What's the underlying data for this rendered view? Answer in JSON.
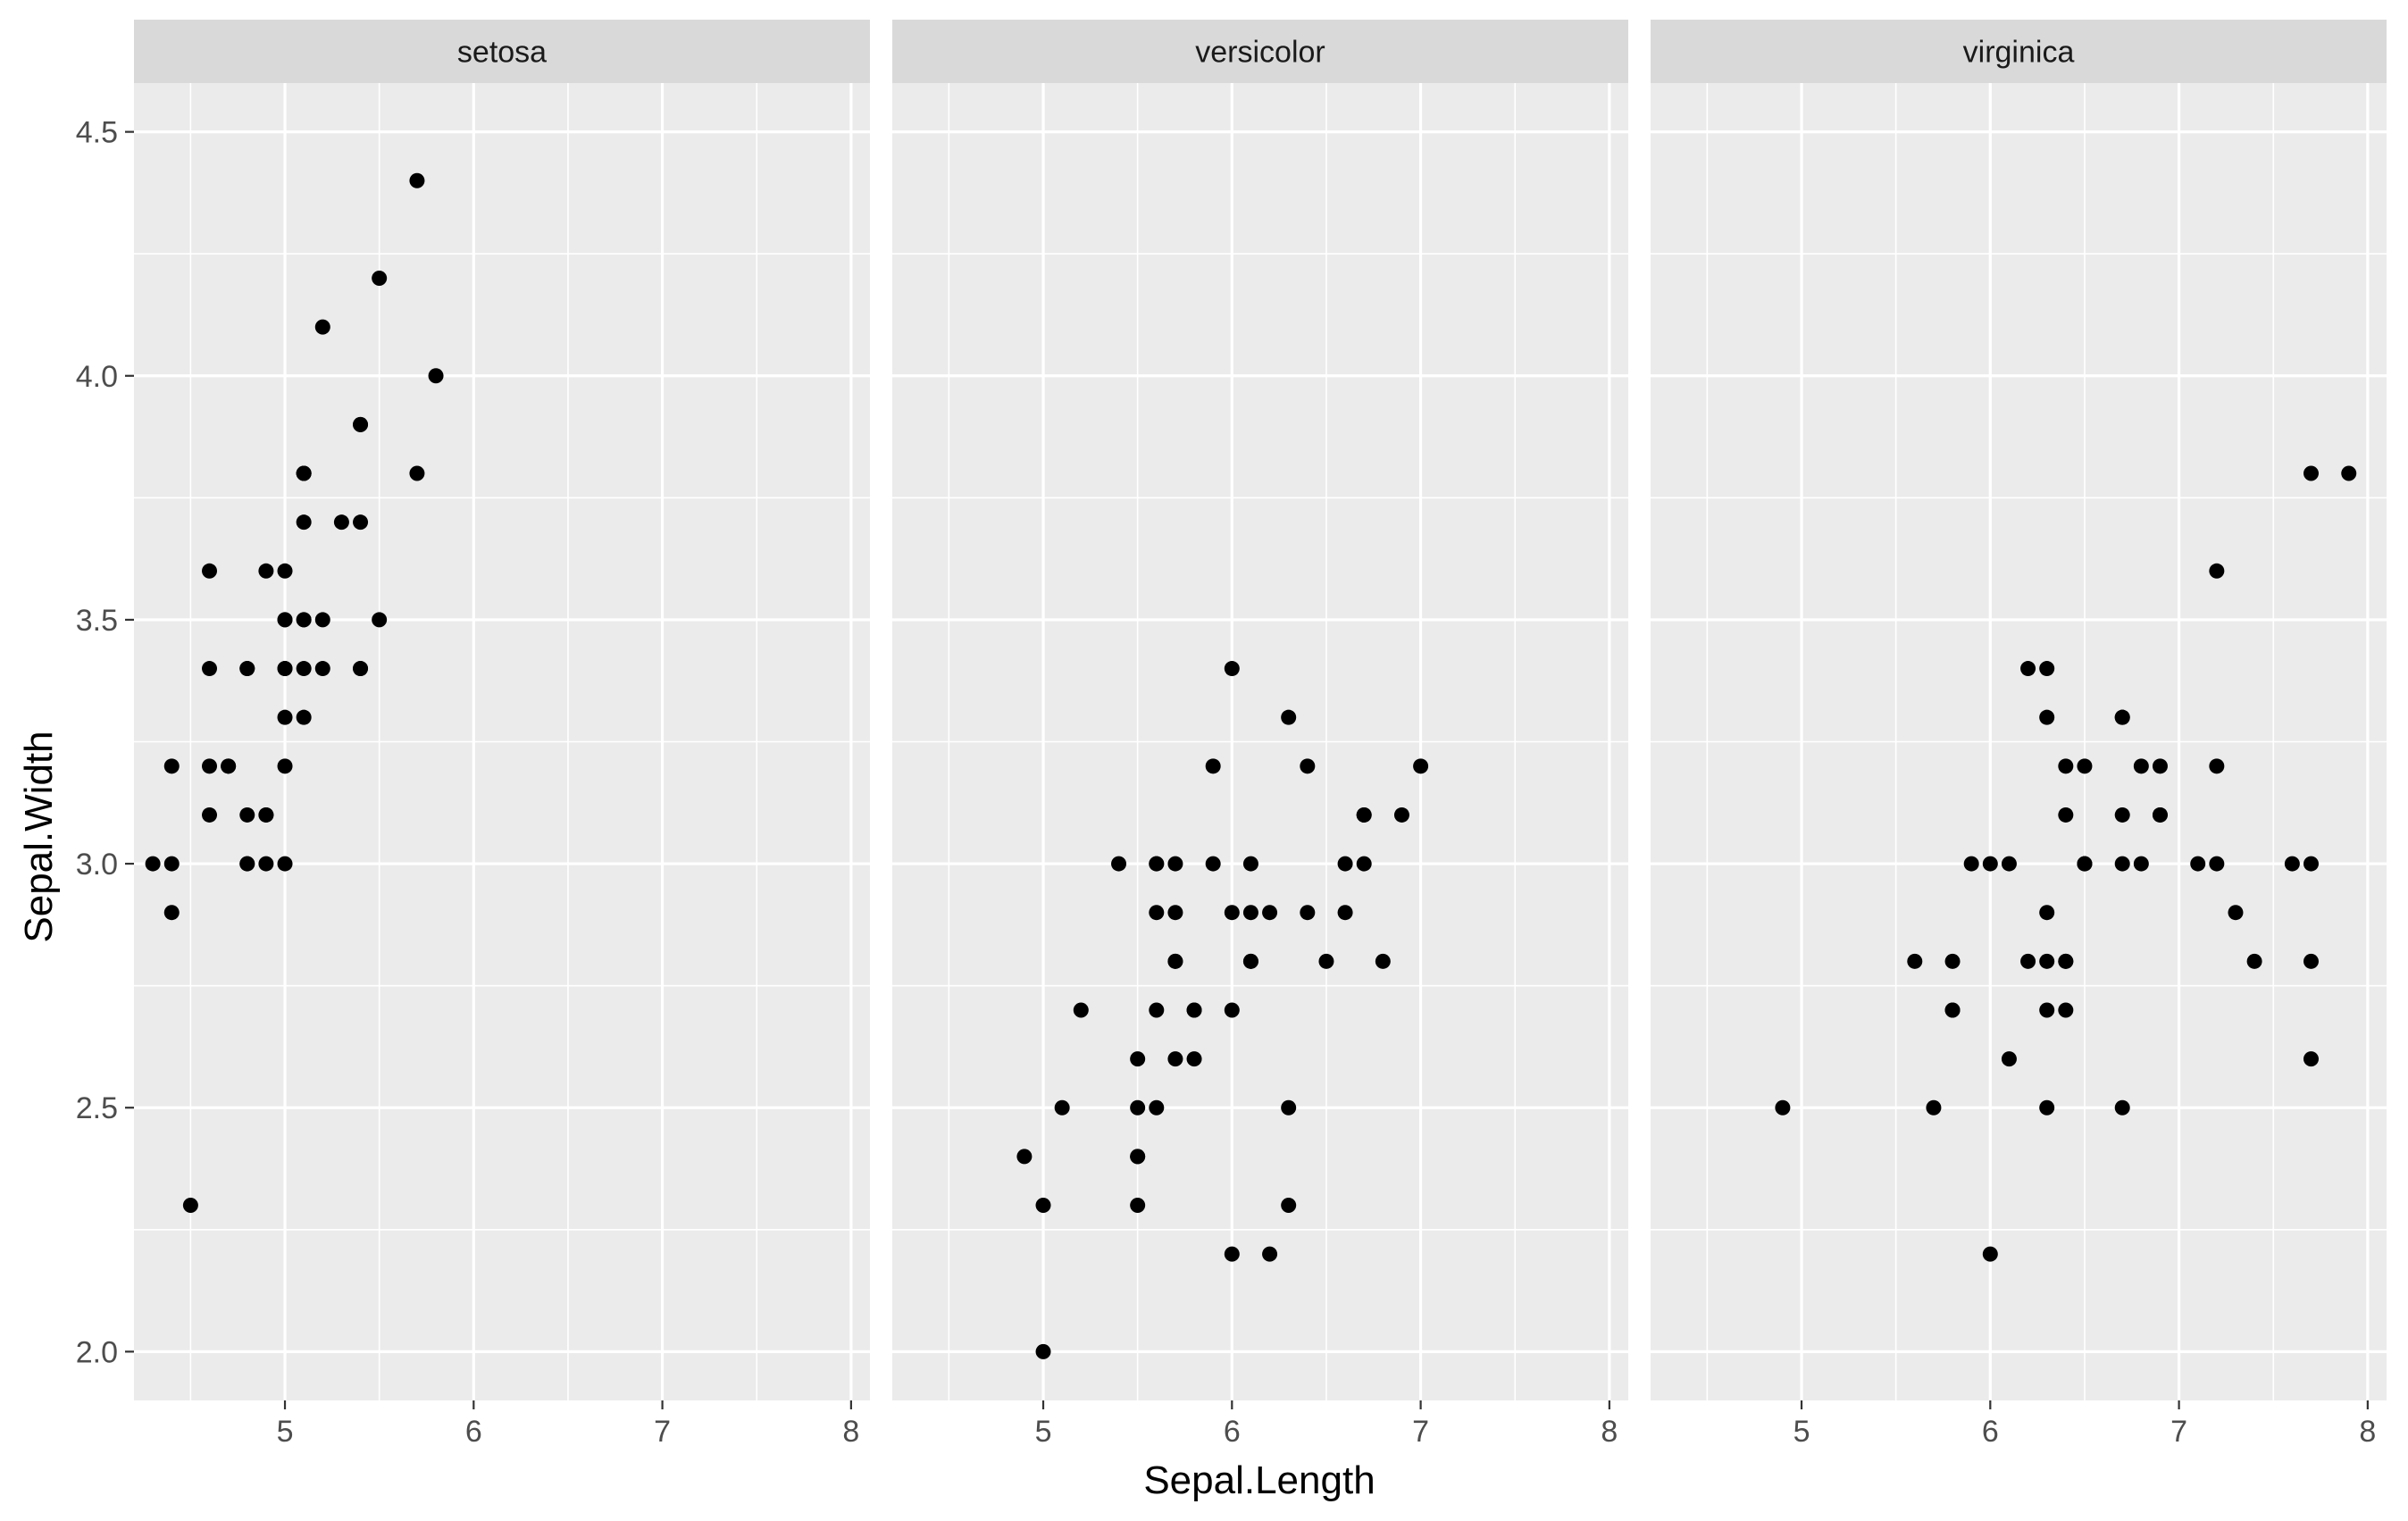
{
  "chart_data": {
    "type": "scatter",
    "xlabel": "Sepal.Length",
    "ylabel": "Sepal.Width",
    "xlim": [
      4.2,
      8.1
    ],
    "ylim": [
      1.9,
      4.6
    ],
    "x_ticks": [
      5,
      6,
      7,
      8
    ],
    "y_ticks": [
      2.0,
      2.5,
      3.0,
      3.5,
      4.0,
      4.5
    ],
    "y_tick_labels": [
      "2.0",
      "2.5",
      "3.0",
      "3.5",
      "4.0",
      "4.5"
    ],
    "grid": true,
    "colors": {
      "panel_bg": "#ebebeb",
      "strip_bg": "#d9d9d9",
      "grid": "#ffffff",
      "point": "#000000",
      "tick": "#333333"
    },
    "facets": [
      {
        "name": "setosa",
        "points": [
          [
            5.1,
            3.5
          ],
          [
            4.9,
            3.0
          ],
          [
            4.7,
            3.2
          ],
          [
            4.6,
            3.1
          ],
          [
            5.0,
            3.6
          ],
          [
            5.4,
            3.9
          ],
          [
            4.6,
            3.4
          ],
          [
            5.0,
            3.4
          ],
          [
            4.4,
            2.9
          ],
          [
            4.9,
            3.1
          ],
          [
            5.4,
            3.7
          ],
          [
            4.8,
            3.4
          ],
          [
            4.8,
            3.0
          ],
          [
            4.3,
            3.0
          ],
          [
            5.8,
            4.0
          ],
          [
            5.7,
            4.4
          ],
          [
            5.4,
            3.9
          ],
          [
            5.1,
            3.5
          ],
          [
            5.7,
            3.8
          ],
          [
            5.1,
            3.8
          ],
          [
            5.4,
            3.4
          ],
          [
            5.1,
            3.7
          ],
          [
            4.6,
            3.6
          ],
          [
            5.1,
            3.3
          ],
          [
            4.8,
            3.4
          ],
          [
            5.0,
            3.0
          ],
          [
            5.0,
            3.4
          ],
          [
            5.2,
            3.5
          ],
          [
            5.2,
            3.4
          ],
          [
            4.7,
            3.2
          ],
          [
            4.8,
            3.1
          ],
          [
            5.4,
            3.4
          ],
          [
            5.2,
            4.1
          ],
          [
            5.5,
            4.2
          ],
          [
            4.9,
            3.1
          ],
          [
            5.0,
            3.2
          ],
          [
            5.5,
            3.5
          ],
          [
            4.9,
            3.6
          ],
          [
            4.4,
            3.0
          ],
          [
            5.1,
            3.4
          ],
          [
            5.0,
            3.5
          ],
          [
            4.5,
            2.3
          ],
          [
            4.4,
            3.2
          ],
          [
            5.0,
            3.5
          ],
          [
            5.1,
            3.8
          ],
          [
            4.8,
            3.0
          ],
          [
            5.1,
            3.8
          ],
          [
            4.6,
            3.2
          ],
          [
            5.3,
            3.7
          ],
          [
            5.0,
            3.3
          ]
        ]
      },
      {
        "name": "versicolor",
        "points": [
          [
            7.0,
            3.2
          ],
          [
            6.4,
            3.2
          ],
          [
            6.9,
            3.1
          ],
          [
            5.5,
            2.3
          ],
          [
            6.5,
            2.8
          ],
          [
            5.7,
            2.8
          ],
          [
            6.3,
            3.3
          ],
          [
            4.9,
            2.4
          ],
          [
            6.6,
            2.9
          ],
          [
            5.2,
            2.7
          ],
          [
            5.0,
            2.0
          ],
          [
            5.9,
            3.0
          ],
          [
            6.0,
            2.2
          ],
          [
            6.1,
            2.9
          ],
          [
            5.6,
            2.9
          ],
          [
            6.7,
            3.1
          ],
          [
            5.6,
            3.0
          ],
          [
            5.8,
            2.7
          ],
          [
            6.2,
            2.2
          ],
          [
            5.6,
            2.5
          ],
          [
            5.9,
            3.2
          ],
          [
            6.1,
            2.8
          ],
          [
            6.3,
            2.5
          ],
          [
            6.1,
            2.8
          ],
          [
            6.4,
            2.9
          ],
          [
            6.6,
            3.0
          ],
          [
            6.8,
            2.8
          ],
          [
            6.7,
            3.0
          ],
          [
            6.0,
            2.9
          ],
          [
            5.7,
            2.6
          ],
          [
            5.5,
            2.4
          ],
          [
            5.5,
            2.4
          ],
          [
            5.8,
            2.7
          ],
          [
            6.0,
            2.7
          ],
          [
            5.4,
            3.0
          ],
          [
            6.0,
            3.4
          ],
          [
            6.7,
            3.1
          ],
          [
            6.3,
            2.3
          ],
          [
            5.6,
            3.0
          ],
          [
            5.5,
            2.5
          ],
          [
            5.5,
            2.6
          ],
          [
            6.1,
            3.0
          ],
          [
            5.8,
            2.6
          ],
          [
            5.0,
            2.3
          ],
          [
            5.6,
            2.7
          ],
          [
            5.7,
            3.0
          ],
          [
            5.7,
            2.9
          ],
          [
            6.2,
            2.9
          ],
          [
            5.1,
            2.5
          ],
          [
            5.7,
            2.8
          ]
        ]
      },
      {
        "name": "virginica",
        "points": [
          [
            6.3,
            3.3
          ],
          [
            5.8,
            2.7
          ],
          [
            7.1,
            3.0
          ],
          [
            6.3,
            2.9
          ],
          [
            6.5,
            3.0
          ],
          [
            7.6,
            3.0
          ],
          [
            4.9,
            2.5
          ],
          [
            7.3,
            2.9
          ],
          [
            6.7,
            2.5
          ],
          [
            7.2,
            3.6
          ],
          [
            6.5,
            3.2
          ],
          [
            6.4,
            2.7
          ],
          [
            6.8,
            3.0
          ],
          [
            5.7,
            2.5
          ],
          [
            5.8,
            2.8
          ],
          [
            6.4,
            3.2
          ],
          [
            6.5,
            3.0
          ],
          [
            7.7,
            3.8
          ],
          [
            7.7,
            2.6
          ],
          [
            6.0,
            2.2
          ],
          [
            6.9,
            3.2
          ],
          [
            5.6,
            2.8
          ],
          [
            7.7,
            2.8
          ],
          [
            6.3,
            2.7
          ],
          [
            6.7,
            3.3
          ],
          [
            7.2,
            3.2
          ],
          [
            6.2,
            2.8
          ],
          [
            6.1,
            3.0
          ],
          [
            6.4,
            2.8
          ],
          [
            7.2,
            3.0
          ],
          [
            7.4,
            2.8
          ],
          [
            7.9,
            3.8
          ],
          [
            6.4,
            2.8
          ],
          [
            6.3,
            2.8
          ],
          [
            6.1,
            2.6
          ],
          [
            7.7,
            3.0
          ],
          [
            6.3,
            3.4
          ],
          [
            6.4,
            3.1
          ],
          [
            6.0,
            3.0
          ],
          [
            6.9,
            3.1
          ],
          [
            6.7,
            3.1
          ],
          [
            6.9,
            3.1
          ],
          [
            5.8,
            2.7
          ],
          [
            6.8,
            3.2
          ],
          [
            6.7,
            3.3
          ],
          [
            6.7,
            3.0
          ],
          [
            6.3,
            2.5
          ],
          [
            6.5,
            3.0
          ],
          [
            6.2,
            3.4
          ],
          [
            5.9,
            3.0
          ]
        ]
      }
    ]
  }
}
